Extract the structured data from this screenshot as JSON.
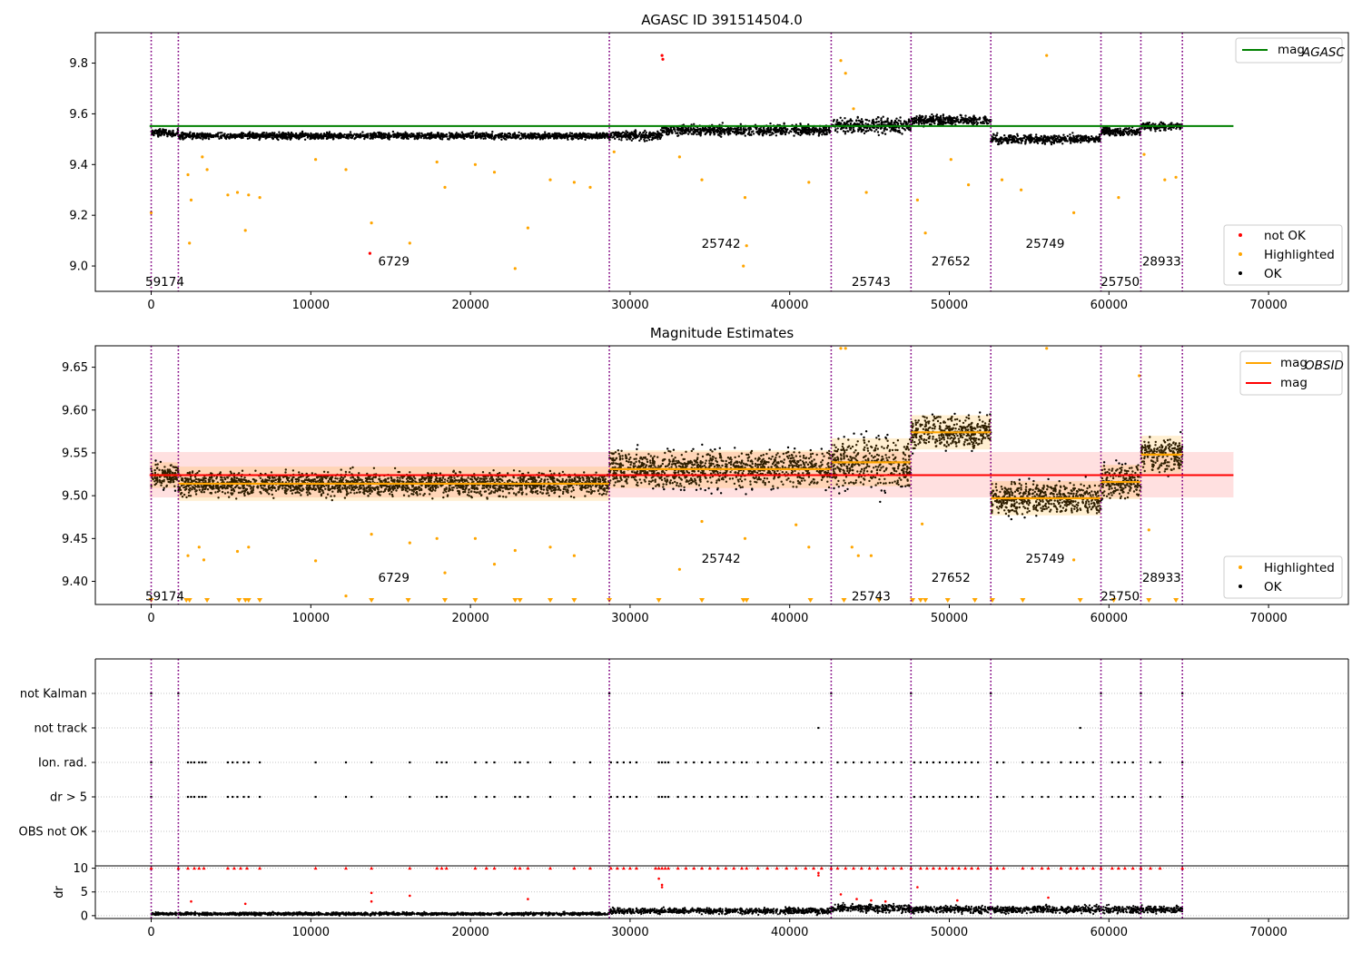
{
  "chart_data": [
    {
      "id": "p1",
      "type": "scatter",
      "title": "AGASC ID 391514504.0",
      "xlim": [
        -3500,
        75000
      ],
      "ylim": [
        8.9,
        9.92
      ],
      "xticks": [
        0,
        10000,
        20000,
        30000,
        40000,
        50000,
        60000,
        70000
      ],
      "xtick_labels": [
        "0",
        "10000",
        "20000",
        "30000",
        "40000",
        "50000",
        "60000",
        "70000"
      ],
      "yticks": [
        9.0,
        9.2,
        9.4,
        9.6,
        9.8
      ],
      "ytick_labels": [
        "9.0",
        "9.2",
        "9.4",
        "9.6",
        "9.8"
      ],
      "grid": false,
      "hline": {
        "value": 9.552,
        "x_range": [
          -100,
          67800
        ],
        "color": "#008000"
      },
      "obs_boundaries": [
        0,
        1700,
        28700,
        42600,
        47600,
        52600,
        59500,
        62000,
        64600
      ],
      "obsid_labels": [
        {
          "text": "59174",
          "x": 850,
          "y": 8.94
        },
        {
          "text": "6729",
          "x": 15200,
          "y": 9.02
        },
        {
          "text": "25742",
          "x": 35700,
          "y": 9.09
        },
        {
          "text": "25743",
          "x": 45100,
          "y": 8.94
        },
        {
          "text": "27652",
          "x": 50100,
          "y": 9.02
        },
        {
          "text": "25749",
          "x": 56000,
          "y": 9.09
        },
        {
          "text": "25750",
          "x": 60700,
          "y": 8.94
        },
        {
          "text": "28933",
          "x": 63300,
          "y": 9.02
        }
      ],
      "segments": [
        {
          "x": [
            0,
            1700
          ],
          "level": 9.525,
          "amp": 0.02
        },
        {
          "x": [
            1700,
            28700
          ],
          "level": 9.513,
          "amp": 0.018
        },
        {
          "x": [
            28700,
            32000
          ],
          "level": 9.515,
          "amp": 0.028
        },
        {
          "x": [
            32000,
            42600
          ],
          "level": 9.535,
          "amp": 0.03
        },
        {
          "x": [
            42600,
            47600
          ],
          "level": 9.555,
          "amp": 0.045
        },
        {
          "x": [
            47600,
            52600
          ],
          "level": 9.575,
          "amp": 0.028
        },
        {
          "x": [
            52600,
            59500
          ],
          "level": 9.5,
          "amp": 0.025
        },
        {
          "x": [
            59500,
            62000
          ],
          "level": 9.53,
          "amp": 0.025
        },
        {
          "x": [
            62000,
            64600
          ],
          "level": 9.55,
          "amp": 0.022
        }
      ],
      "highlighted_points": [
        [
          0,
          9.21
        ],
        [
          2400,
          9.09
        ],
        [
          2500,
          9.26
        ],
        [
          2300,
          9.36
        ],
        [
          3200,
          9.43
        ],
        [
          3500,
          9.38
        ],
        [
          4800,
          9.28
        ],
        [
          5400,
          9.29
        ],
        [
          5900,
          9.14
        ],
        [
          6100,
          9.28
        ],
        [
          6800,
          9.27
        ],
        [
          10300,
          9.42
        ],
        [
          12200,
          9.38
        ],
        [
          13800,
          9.17
        ],
        [
          16200,
          9.09
        ],
        [
          17900,
          9.41
        ],
        [
          18400,
          9.31
        ],
        [
          20300,
          9.4
        ],
        [
          21500,
          9.37
        ],
        [
          22800,
          8.99
        ],
        [
          23600,
          9.15
        ],
        [
          25000,
          9.34
        ],
        [
          26500,
          9.33
        ],
        [
          27500,
          9.31
        ],
        [
          29000,
          9.45
        ],
        [
          33100,
          9.43
        ],
        [
          34500,
          9.34
        ],
        [
          37200,
          9.27
        ],
        [
          37300,
          9.08
        ],
        [
          37100,
          9.0
        ],
        [
          41200,
          9.33
        ],
        [
          43200,
          9.81
        ],
        [
          43500,
          9.76
        ],
        [
          44000,
          9.62
        ],
        [
          44800,
          9.29
        ],
        [
          48000,
          9.26
        ],
        [
          48500,
          9.13
        ],
        [
          50100,
          9.42
        ],
        [
          51200,
          9.32
        ],
        [
          53300,
          9.34
        ],
        [
          54500,
          9.3
        ],
        [
          56100,
          9.83
        ],
        [
          57800,
          9.21
        ],
        [
          60600,
          9.27
        ],
        [
          62200,
          9.44
        ],
        [
          63500,
          9.34
        ],
        [
          64200,
          9.35
        ]
      ],
      "not_ok_points": [
        [
          13700,
          9.05
        ],
        [
          32000,
          9.83
        ],
        [
          32050,
          9.815
        ]
      ],
      "legend_upper": [
        {
          "label": "mag",
          "sub": "AGASC",
          "color": "#008000"
        }
      ],
      "legend_lower": [
        {
          "label": "not OK",
          "color": "#ff0000"
        },
        {
          "label": "Highlighted",
          "color": "#ffa500"
        },
        {
          "label": "OK",
          "color": "#000000"
        }
      ]
    },
    {
      "id": "p2",
      "type": "scatter",
      "title": "Magnitude Estimates",
      "xlim": [
        -3500,
        75000
      ],
      "ylim": [
        9.373,
        9.675
      ],
      "xticks": [
        0,
        10000,
        20000,
        30000,
        40000,
        50000,
        60000,
        70000
      ],
      "xtick_labels": [
        "0",
        "10000",
        "20000",
        "30000",
        "40000",
        "50000",
        "60000",
        "70000"
      ],
      "yticks": [
        9.4,
        9.45,
        9.5,
        9.55,
        9.6,
        9.65
      ],
      "ytick_labels": [
        "9.40",
        "9.45",
        "9.50",
        "9.55",
        "9.60",
        "9.65"
      ],
      "grid": false,
      "mag_line": {
        "value": 9.524,
        "band": [
          9.498,
          9.551
        ],
        "x_range": [
          -100,
          67800
        ],
        "color": "#ff0000"
      },
      "obs_boundaries": [
        0,
        1700,
        28700,
        42600,
        47600,
        52600,
        59500,
        62000,
        64600
      ],
      "obsid_labels": [
        {
          "text": "59174",
          "x": 850,
          "y": 9.383
        },
        {
          "text": "6729",
          "x": 15200,
          "y": 9.405
        },
        {
          "text": "25742",
          "x": 35700,
          "y": 9.427
        },
        {
          "text": "25743",
          "x": 45100,
          "y": 9.383
        },
        {
          "text": "27652",
          "x": 50100,
          "y": 9.405
        },
        {
          "text": "25749",
          "x": 56000,
          "y": 9.427
        },
        {
          "text": "25750",
          "x": 60700,
          "y": 9.383
        },
        {
          "text": "28933",
          "x": 63300,
          "y": 9.405
        }
      ],
      "segments": [
        {
          "x": [
            0,
            1700
          ],
          "level": 9.524,
          "std": 0.015,
          "amp": 0.025
        },
        {
          "x": [
            1700,
            28700
          ],
          "level": 9.514,
          "std": 0.02,
          "amp": 0.022
        },
        {
          "x": [
            28700,
            42600
          ],
          "level": 9.531,
          "std": 0.022,
          "amp": 0.035
        },
        {
          "x": [
            42600,
            47600
          ],
          "level": 9.539,
          "std": 0.028,
          "amp": 0.05
        },
        {
          "x": [
            47600,
            52600
          ],
          "level": 9.574,
          "std": 0.02,
          "amp": 0.03
        },
        {
          "x": [
            52600,
            59500
          ],
          "level": 9.497,
          "std": 0.02,
          "amp": 0.03
        },
        {
          "x": [
            59500,
            62000
          ],
          "level": 9.516,
          "std": 0.02,
          "amp": 0.03
        },
        {
          "x": [
            62000,
            64600
          ],
          "level": 9.548,
          "std": 0.022,
          "amp": 0.03
        }
      ],
      "highlighted_points": [
        [
          2300,
          9.43
        ],
        [
          3000,
          9.44
        ],
        [
          3300,
          9.425
        ],
        [
          5400,
          9.435
        ],
        [
          6100,
          9.44
        ],
        [
          10300,
          9.424
        ],
        [
          12200,
          9.383
        ],
        [
          13800,
          9.455
        ],
        [
          16200,
          9.445
        ],
        [
          17900,
          9.45
        ],
        [
          18400,
          9.41
        ],
        [
          20300,
          9.45
        ],
        [
          21500,
          9.42
        ],
        [
          22800,
          9.436
        ],
        [
          25000,
          9.44
        ],
        [
          26500,
          9.43
        ],
        [
          33100,
          9.414
        ],
        [
          34500,
          9.47
        ],
        [
          37200,
          9.45
        ],
        [
          40400,
          9.466
        ],
        [
          41200,
          9.44
        ],
        [
          43200,
          9.672
        ],
        [
          43500,
          9.672
        ],
        [
          43900,
          9.44
        ],
        [
          44300,
          9.43
        ],
        [
          45100,
          9.43
        ],
        [
          48300,
          9.467
        ],
        [
          56100,
          9.672
        ],
        [
          57800,
          9.425
        ],
        [
          61900,
          9.64
        ],
        [
          62500,
          9.46
        ]
      ],
      "clipped_low_x": [
        0,
        2200,
        2400,
        3500,
        5500,
        5900,
        6100,
        6800,
        13800,
        16100,
        18400,
        20300,
        22800,
        23100,
        25000,
        26500,
        28700,
        31800,
        34500,
        37100,
        37300,
        41300,
        43400,
        45600,
        47700,
        48200,
        48500,
        49900,
        51600,
        52700,
        54600,
        58200,
        60300,
        62500,
        64200
      ],
      "legend_upper": [
        {
          "label": "mag",
          "sub": "OBSID",
          "color": "#ffa500"
        },
        {
          "label": "mag",
          "sub": "",
          "color": "#ff0000"
        }
      ],
      "legend_lower": [
        {
          "label": "Highlighted",
          "color": "#ffa500"
        },
        {
          "label": "OK",
          "color": "#000000"
        }
      ]
    },
    {
      "id": "p3",
      "type": "scatter",
      "title": "",
      "xlim": [
        -3500,
        75000
      ],
      "category_rows": [
        "not Kalman",
        "not track",
        "Ion. rad.",
        "dr > 5",
        "OBS not OK"
      ],
      "grid": "horizontal dotted",
      "obs_boundaries": [
        0,
        1700,
        28700,
        42600,
        47600,
        52600,
        59500,
        62000,
        64600
      ],
      "row_points": {
        "not Kalman": [
          0,
          1700,
          28700,
          42600,
          47600,
          52600,
          59500,
          62000,
          64600
        ],
        "not track": [
          41800,
          58200
        ],
        "Ion. rad.": [
          0,
          2300,
          2500,
          2700,
          3000,
          3200,
          3400,
          4800,
          5100,
          5400,
          5800,
          6100,
          6800,
          10300,
          12200,
          13800,
          16200,
          17900,
          18200,
          18500,
          20300,
          21000,
          21500,
          22800,
          23100,
          23600,
          25000,
          26500,
          27500,
          28800,
          29200,
          29600,
          30000,
          30400,
          31800,
          32000,
          32200,
          32400,
          33000,
          33500,
          34000,
          34500,
          35000,
          35500,
          36000,
          36500,
          37000,
          37300,
          38000,
          38600,
          39200,
          39800,
          40400,
          41000,
          41500,
          42000,
          43000,
          43500,
          44000,
          44500,
          45000,
          45500,
          46000,
          46500,
          47000,
          47800,
          48200,
          48600,
          49000,
          49400,
          49800,
          50200,
          50600,
          51000,
          51400,
          51800,
          53000,
          53400,
          54600,
          55200,
          55800,
          56200,
          57000,
          57600,
          58000,
          58400,
          59000,
          60200,
          60600,
          61000,
          61500,
          62600,
          63200,
          64600
        ],
        "dr > 5": [
          0,
          2300,
          2500,
          2700,
          3000,
          3200,
          3400,
          4800,
          5100,
          5400,
          5800,
          6100,
          6800,
          10300,
          12200,
          13800,
          16200,
          17900,
          18200,
          18500,
          20300,
          21000,
          21500,
          22800,
          23100,
          23600,
          25000,
          26500,
          27500,
          28800,
          29200,
          29600,
          30000,
          30400,
          31800,
          32000,
          32200,
          32400,
          33000,
          33500,
          34000,
          34500,
          35000,
          35500,
          36000,
          36500,
          37000,
          37300,
          38000,
          38600,
          39200,
          39800,
          40400,
          41000,
          41500,
          42000,
          43000,
          43500,
          44000,
          44500,
          45000,
          45500,
          46000,
          46500,
          47000,
          47800,
          48200,
          48600,
          49000,
          49400,
          49800,
          50200,
          50600,
          51000,
          51400,
          51800,
          53000,
          53400,
          54600,
          55200,
          55800,
          56200,
          57000,
          57600,
          58000,
          58400,
          59000,
          60200,
          60600,
          61000,
          61500,
          62600,
          63200,
          64600
        ],
        "OBS not OK": []
      }
    },
    {
      "id": "p4",
      "type": "scatter",
      "title": "",
      "xlim": [
        -3500,
        75000
      ],
      "ylim": [
        -0.6,
        10.5
      ],
      "xticks": [
        0,
        10000,
        20000,
        30000,
        40000,
        50000,
        60000,
        70000
      ],
      "xtick_labels": [
        "0",
        "10000",
        "20000",
        "30000",
        "40000",
        "50000",
        "60000",
        "70000"
      ],
      "yticks": [
        0,
        5,
        10
      ],
      "ytick_labels": [
        "0",
        "5",
        "10"
      ],
      "ylabel": "dr",
      "grid": "horizontal dotted",
      "obs_boundaries": [
        0,
        1700,
        28700,
        42600,
        47600,
        52600,
        59500,
        62000,
        64600
      ],
      "dr_segments": [
        {
          "x": [
            0,
            28700
          ],
          "level": 0.4,
          "amp": 0.4
        },
        {
          "x": [
            28700,
            42600
          ],
          "level": 1.0,
          "amp": 0.8
        },
        {
          "x": [
            42600,
            47600
          ],
          "level": 1.6,
          "amp": 1.2
        },
        {
          "x": [
            47600,
            64600
          ],
          "level": 1.3,
          "amp": 1.0
        }
      ],
      "red_outliers": [
        [
          2500,
          3
        ],
        [
          5900,
          2.5
        ],
        [
          13800,
          4.8
        ],
        [
          13800,
          3
        ],
        [
          16200,
          4.2
        ],
        [
          23600,
          3.5
        ],
        [
          31800,
          7.8
        ],
        [
          32000,
          6
        ],
        [
          32000,
          6.5
        ],
        [
          41800,
          8.5
        ],
        [
          41800,
          9
        ],
        [
          43200,
          4.5
        ],
        [
          44200,
          3.5
        ],
        [
          45100,
          3.2
        ],
        [
          46000,
          3
        ],
        [
          48000,
          6
        ],
        [
          50500,
          3.2
        ],
        [
          56200,
          3.8
        ]
      ],
      "red_capped_x": [
        0,
        1700,
        2300,
        2700,
        3000,
        3300,
        4800,
        5200,
        5600,
        6000,
        6800,
        10300,
        12200,
        13800,
        16200,
        17900,
        18200,
        18500,
        20300,
        21000,
        21500,
        22800,
        23100,
        23600,
        25000,
        26500,
        27500,
        28800,
        29200,
        29600,
        30000,
        30400,
        31600,
        31800,
        32000,
        32200,
        32400,
        33000,
        33500,
        34000,
        34500,
        35000,
        35500,
        36000,
        36500,
        37000,
        37300,
        38000,
        38600,
        39200,
        39800,
        40400,
        41000,
        41500,
        42000,
        42600,
        43000,
        43500,
        44000,
        44500,
        45000,
        45500,
        46000,
        46500,
        47000,
        47600,
        48200,
        48600,
        49000,
        49400,
        49800,
        50200,
        50600,
        51000,
        51400,
        51800,
        52600,
        53000,
        53400,
        54600,
        55200,
        55800,
        56200,
        57000,
        57600,
        58000,
        58400,
        59000,
        59500,
        60200,
        60600,
        61000,
        61500,
        62000,
        62600,
        63200,
        64600
      ]
    }
  ]
}
